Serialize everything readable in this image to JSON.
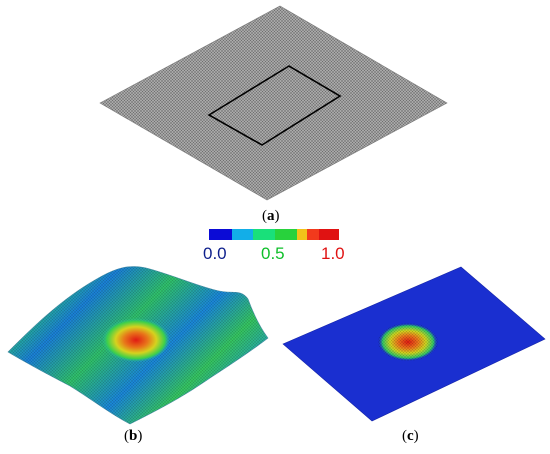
{
  "panels": [
    {
      "id": "a",
      "label_open": "(",
      "label_letter": "a",
      "label_close": ")"
    },
    {
      "id": "b",
      "label_open": "(",
      "label_letter": "b",
      "label_close": ")"
    },
    {
      "id": "c",
      "label_open": "(",
      "label_letter": "c",
      "label_close": ")"
    }
  ],
  "colorbar": {
    "ticks": [
      "0.0",
      "0.5",
      "1.0"
    ],
    "colors": [
      "#0b0bd6",
      "#12aee8",
      "#19e07a",
      "#28d23c",
      "#f2c21a",
      "#f23a1c",
      "#e01212"
    ],
    "tick_colors": [
      "#0d1f8c",
      "#0fbf2a",
      "#e01212"
    ]
  },
  "colors": {
    "mesh_gray": "#9a9a9a",
    "plate_blue": "#1a2fd0",
    "hump_red": "#e02a1a"
  }
}
